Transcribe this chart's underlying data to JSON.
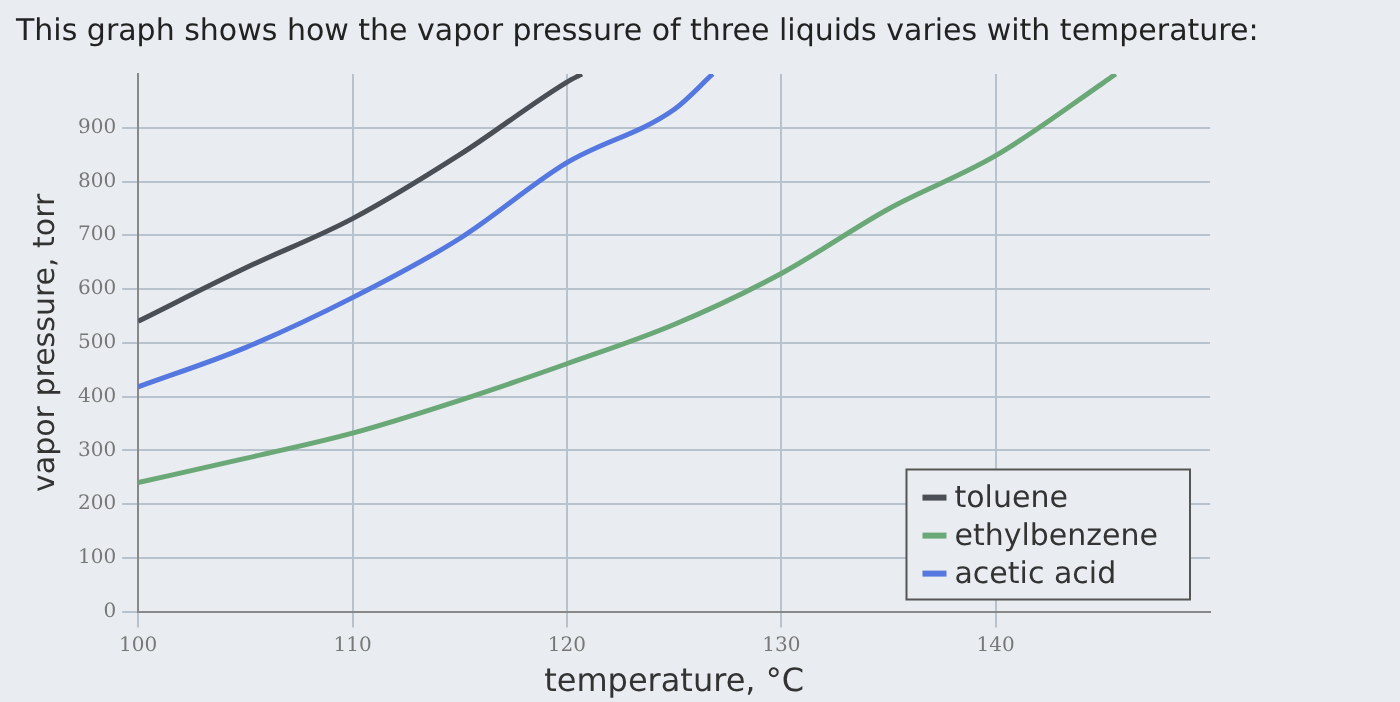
{
  "chart_data": {
    "type": "line",
    "title": "This graph shows how the vapor pressure of three liquids varies with temperature:",
    "xlabel": "temperature, °C",
    "ylabel": "vapor pressure, torr",
    "xlim": [
      100,
      150
    ],
    "xticks": [
      100,
      110,
      120,
      130,
      140
    ],
    "ylim": [
      0,
      1000
    ],
    "yticks": [
      0,
      100,
      200,
      300,
      400,
      500,
      600,
      700,
      800,
      900
    ],
    "grid": true,
    "legend": "bottom right",
    "marker": "none",
    "line_style": "solid",
    "series": [
      {
        "name": "toluene",
        "color": "#4a4e55",
        "x": [
          100,
          105,
          110,
          115,
          120,
          120.7
        ],
        "values": [
          540,
          639,
          731,
          850,
          985,
          1000
        ]
      },
      {
        "name": "ethylbenzene",
        "color": "#6aa877",
        "x": [
          100,
          105,
          110,
          115,
          120,
          125,
          130,
          135,
          140,
          145,
          145.6
        ],
        "values": [
          240,
          285,
          332,
          393,
          461,
          534,
          629,
          749,
          848,
          983,
          1000
        ]
      },
      {
        "name": "acetic acid",
        "color": "#5577e0",
        "x": [
          100,
          105,
          110,
          115,
          120,
          125,
          126.8
        ],
        "values": [
          418,
          491,
          584,
          694,
          835,
          934,
          1000
        ]
      }
    ]
  }
}
